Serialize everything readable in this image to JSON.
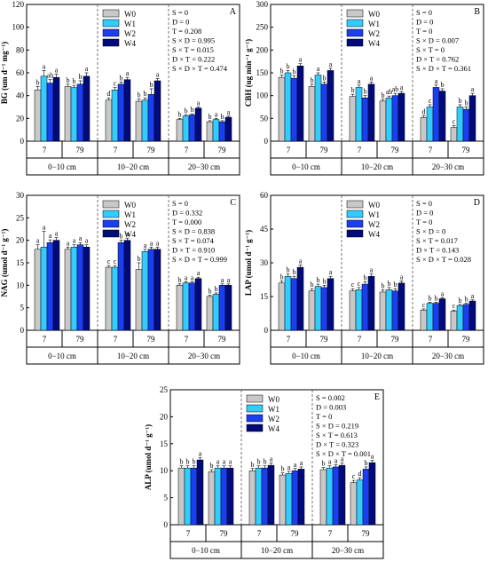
{
  "colors": {
    "W0": "#c8c8c8",
    "W1": "#33ccff",
    "W2": "#1a3ff0",
    "W4": "#000a7a"
  },
  "chart_data": [
    {
      "panel": "A",
      "type": "bar",
      "ylabel": "BG (um d⁻¹ mg⁻¹)",
      "ylim": [
        0,
        120
      ],
      "yticks": [
        0,
        20,
        40,
        60,
        80,
        100,
        120
      ],
      "legend": [
        "W0",
        "W1",
        "W2",
        "W4"
      ],
      "stats": [
        "S = 0",
        "D = 0",
        "T = 0.208",
        "S × D = 0.995",
        "S × T = 0.015",
        "D × T = 0.222",
        "S × D × T = 0.474"
      ],
      "depths": [
        "0−10 cm",
        "10−20 cm",
        "20−30 cm"
      ],
      "times": [
        "7",
        "79"
      ],
      "groups": [
        {
          "values": [
            45,
            57,
            51,
            56
          ],
          "err": [
            3,
            5,
            3,
            3
          ],
          "letters": [
            "b",
            "a",
            "ab",
            "a"
          ]
        },
        {
          "values": [
            48,
            47,
            50,
            57
          ],
          "err": [
            2,
            2,
            3,
            3
          ],
          "letters": [
            "b",
            "b",
            "b",
            "a"
          ]
        },
        {
          "values": [
            36,
            45,
            50,
            54
          ],
          "err": [
            2,
            2,
            2,
            2
          ],
          "letters": [
            "d",
            "c",
            "b",
            "a"
          ]
        },
        {
          "values": [
            35,
            36,
            41,
            53
          ],
          "err": [
            2,
            2,
            5,
            2
          ],
          "letters": [
            "b",
            "b",
            "b",
            "a"
          ]
        },
        {
          "values": [
            19,
            22,
            23,
            29
          ],
          "err": [
            1,
            1,
            1,
            1
          ],
          "letters": [
            "b",
            "b",
            "b",
            "a"
          ]
        },
        {
          "values": [
            17,
            19,
            17,
            21
          ],
          "err": [
            1,
            1,
            1,
            1
          ],
          "letters": [
            "b",
            "a",
            "b",
            "a"
          ]
        }
      ]
    },
    {
      "panel": "B",
      "type": "bar",
      "ylabel": "CBH (ug min⁻¹ g⁻¹)",
      "ylim": [
        0,
        300
      ],
      "yticks": [
        0,
        50,
        100,
        150,
        200,
        250,
        300
      ],
      "legend": [
        "W0",
        "W1",
        "W2",
        "W4"
      ],
      "stats": [
        "S = 0",
        "D = 0",
        "T = 0",
        "S × D = 0.007",
        "S × T = 0",
        "D × T = 0.762",
        "S × D × T = 0.361"
      ],
      "depths": [
        "0−10 cm",
        "10−20 cm",
        "20−30 cm"
      ],
      "times": [
        "7",
        "79"
      ],
      "groups": [
        {
          "values": [
            140,
            150,
            138,
            165
          ],
          "err": [
            5,
            5,
            5,
            5
          ],
          "letters": [
            "b",
            "b",
            "b",
            "a"
          ]
        },
        {
          "values": [
            120,
            145,
            125,
            155
          ],
          "err": [
            5,
            5,
            5,
            5
          ],
          "letters": [
            "b",
            "a",
            "b",
            "a"
          ]
        },
        {
          "values": [
            98,
            118,
            95,
            125
          ],
          "err": [
            5,
            5,
            5,
            5
          ],
          "letters": [
            "b",
            "a",
            "b",
            "a"
          ]
        },
        {
          "values": [
            88,
            95,
            100,
            105
          ],
          "err": [
            4,
            4,
            5,
            4
          ],
          "letters": [
            "b",
            "ab",
            "ab",
            "a"
          ]
        },
        {
          "values": [
            52,
            75,
            118,
            110
          ],
          "err": [
            4,
            5,
            5,
            5
          ],
          "letters": [
            "d",
            "c",
            "a",
            "b"
          ]
        },
        {
          "values": [
            30,
            75,
            70,
            100
          ],
          "err": [
            4,
            5,
            5,
            5
          ],
          "letters": [
            "c",
            "b",
            "b",
            "a"
          ]
        }
      ]
    },
    {
      "panel": "C",
      "type": "bar",
      "ylabel": "NAG (umol d⁻¹ g⁻¹)",
      "ylim": [
        0,
        30
      ],
      "yticks": [
        0,
        5,
        10,
        15,
        20,
        25,
        30
      ],
      "legend": [
        "W0",
        "W1",
        "W2",
        "W4"
      ],
      "stats": [
        "S = 0",
        "D = 0.332",
        "T = 0.000",
        "S × D = 0.838",
        "S × T = 0.074",
        "D × T = 0.910",
        "S × D × T = 0.999"
      ],
      "depths": [
        "0−10 cm",
        "10−20 cm",
        "20−30 cm"
      ],
      "times": [
        "7",
        "79"
      ],
      "groups": [
        {
          "values": [
            18,
            18.5,
            19.5,
            20
          ],
          "err": [
            1,
            3.5,
            0.6,
            0.6
          ],
          "letters": [
            "a",
            "a",
            "a",
            "a"
          ]
        },
        {
          "values": [
            18,
            18.5,
            19,
            18.5
          ],
          "err": [
            0.5,
            0.5,
            0.5,
            0.5
          ],
          "letters": [
            "a",
            "a",
            "a",
            "a"
          ]
        },
        {
          "values": [
            14,
            14,
            19.5,
            20
          ],
          "err": [
            0.4,
            0.4,
            0.5,
            0.5
          ],
          "letters": [
            "c",
            "c",
            "b",
            "a"
          ]
        },
        {
          "values": [
            13.5,
            17.5,
            18,
            18
          ],
          "err": [
            1.5,
            0.5,
            0.5,
            0.5
          ],
          "letters": [
            "b",
            "a",
            "a",
            "a"
          ]
        },
        {
          "values": [
            10,
            10.5,
            10.5,
            11.5
          ],
          "err": [
            0.3,
            0.3,
            0.3,
            0.3
          ],
          "letters": [
            "b",
            "a",
            "a",
            "a"
          ]
        },
        {
          "values": [
            7.5,
            8,
            10,
            10
          ],
          "err": [
            0.3,
            0.3,
            0.3,
            0.3
          ],
          "letters": [
            "b",
            "b",
            "a",
            "a"
          ]
        }
      ]
    },
    {
      "panel": "D",
      "type": "bar",
      "ylabel": "LAP (umol d⁻¹ g⁻¹)",
      "ylim": [
        0,
        60
      ],
      "yticks": [
        0,
        15,
        30,
        45,
        60
      ],
      "legend": [
        "W0",
        "W1",
        "W2",
        "W4"
      ],
      "stats": [
        "S = 0",
        "D = 0",
        "T = 0",
        "S × D = 0",
        "S × T = 0.017",
        "D × T = 0.143",
        "S × D × T = 0.028"
      ],
      "depths": [
        "0−10 cm",
        "10−20 cm",
        "20−30 cm"
      ],
      "times": [
        "7",
        "79"
      ],
      "groups": [
        {
          "values": [
            21,
            24,
            23,
            28
          ],
          "err": [
            1,
            1,
            1,
            1
          ],
          "letters": [
            "b",
            "b",
            "b",
            "a"
          ]
        },
        {
          "values": [
            17.5,
            19.5,
            19,
            23
          ],
          "err": [
            1,
            1,
            1,
            1
          ],
          "letters": [
            "b",
            "b",
            "b",
            "a"
          ]
        },
        {
          "values": [
            17.5,
            18,
            20.5,
            24
          ],
          "err": [
            1,
            1,
            1,
            1
          ],
          "letters": [
            "c",
            "c",
            "b",
            "a"
          ]
        },
        {
          "values": [
            17,
            18,
            17.5,
            21
          ],
          "err": [
            1,
            1,
            1,
            1
          ],
          "letters": [
            "b",
            "b",
            "b",
            "a"
          ]
        },
        {
          "values": [
            9,
            12,
            12,
            14
          ],
          "err": [
            0.5,
            0.5,
            0.5,
            0.5
          ],
          "letters": [
            "c",
            "b",
            "b",
            "a"
          ]
        },
        {
          "values": [
            8.5,
            11,
            11.5,
            13
          ],
          "err": [
            0.5,
            0.5,
            0.5,
            0.5
          ],
          "letters": [
            "c",
            "b",
            "b",
            "a"
          ]
        }
      ]
    },
    {
      "panel": "E",
      "type": "bar",
      "ylabel": "ALP (umol d⁻¹ g⁻¹)",
      "ylim": [
        0,
        25
      ],
      "yticks": [
        0,
        5,
        10,
        15,
        20,
        25
      ],
      "legend": [
        "W0",
        "W1",
        "W2",
        "W4"
      ],
      "stats": [
        "S = 0.002",
        "D = 0.003",
        "T = 0",
        "S × D = 0.219",
        "S × T = 0.613",
        "D × T = 0.323",
        "S × D × T = 0.001"
      ],
      "depths": [
        "0−10 cm",
        "10−20 cm",
        "20−30 cm"
      ],
      "times": [
        "7",
        "79"
      ],
      "groups": [
        {
          "values": [
            10.5,
            10.5,
            10.5,
            12
          ],
          "err": [
            0.4,
            0.4,
            0.4,
            0.4
          ],
          "letters": [
            "b",
            "b",
            "b",
            "a"
          ]
        },
        {
          "values": [
            9.8,
            10.5,
            10.5,
            10.5
          ],
          "err": [
            0.4,
            0.4,
            0.4,
            0.4
          ],
          "letters": [
            "b",
            "a",
            "a",
            "a"
          ]
        },
        {
          "values": [
            10,
            10.5,
            10.5,
            11
          ],
          "err": [
            0.4,
            0.4,
            0.4,
            0.4
          ],
          "letters": [
            "b",
            "b",
            "b",
            "a"
          ]
        },
        {
          "values": [
            9.2,
            9.5,
            10,
            10.3
          ],
          "err": [
            0.4,
            0.4,
            0.4,
            0.4
          ],
          "letters": [
            "b",
            "a",
            "a",
            "a"
          ]
        },
        {
          "values": [
            10.2,
            10.5,
            10.7,
            11
          ],
          "err": [
            0.4,
            0.4,
            0.4,
            0.4
          ],
          "letters": [
            "b",
            "a",
            "a",
            "a"
          ]
        },
        {
          "values": [
            7.8,
            8.3,
            10.3,
            11.5
          ],
          "err": [
            0.4,
            0.4,
            0.4,
            0.4
          ],
          "letters": [
            "c",
            "d",
            "b",
            "a"
          ]
        }
      ]
    }
  ]
}
